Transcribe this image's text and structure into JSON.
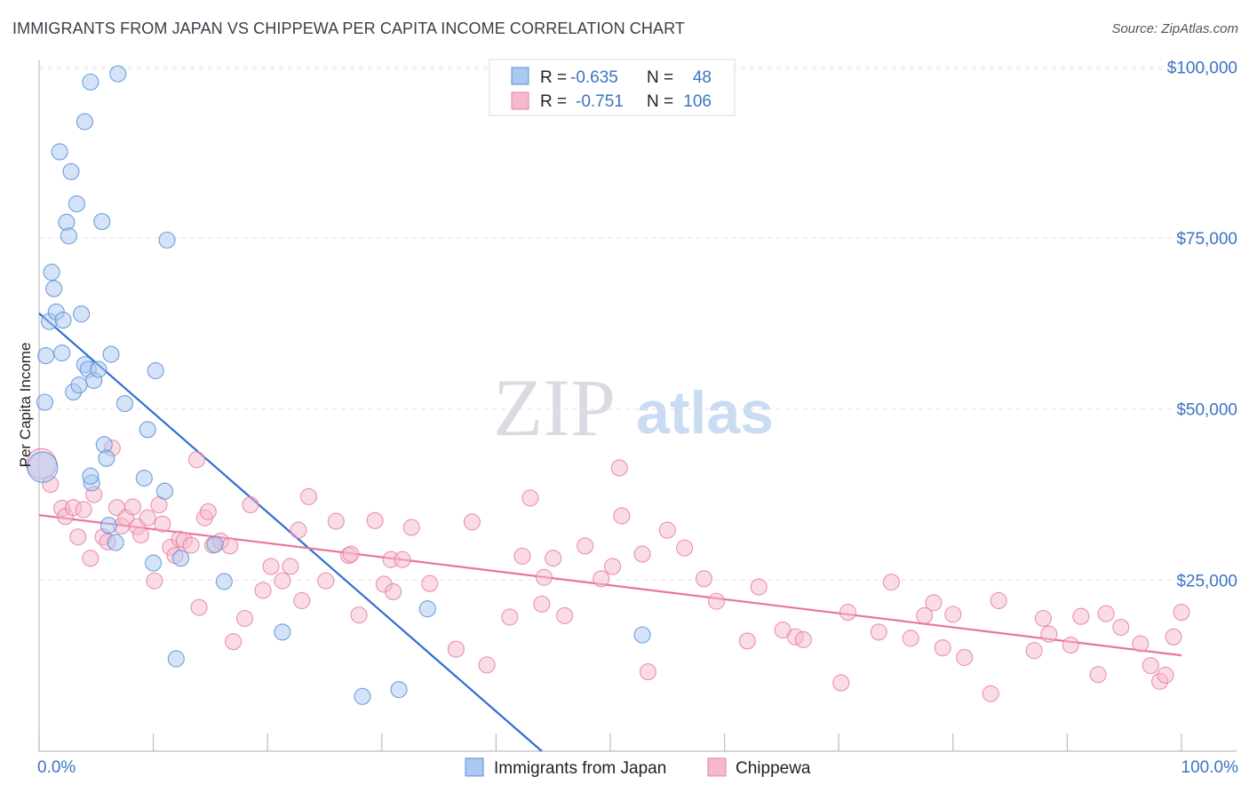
{
  "title": "IMMIGRANTS FROM JAPAN VS CHIPPEWA PER CAPITA INCOME CORRELATION CHART",
  "source": "Source: ZipAtlas.com",
  "watermark": {
    "zip": "ZIP",
    "atlas": "atlas"
  },
  "colors": {
    "blue_fill": "#a9c8f2",
    "blue_stroke": "#5b8fd6",
    "blue_line": "#2f6fd0",
    "pink_fill": "#f5b9cd",
    "pink_stroke": "#e8809f",
    "pink_line": "#e8769b",
    "tick_text": "#3d73c4",
    "grid": "#e3e3e3"
  },
  "legend": {
    "rows": [
      {
        "r_label": "R =",
        "r_value": "-0.635",
        "n_label": "N =",
        "n_value": "48"
      },
      {
        "r_label": "R =",
        "r_value": "-0.751",
        "n_label": "N =",
        "n_value": "106"
      }
    ]
  },
  "chart_data": {
    "type": "scatter",
    "title": "IMMIGRANTS FROM JAPAN VS CHIPPEWA PER CAPITA INCOME CORRELATION CHART",
    "xlabel": "",
    "ylabel": "Per Capita Income",
    "xlim": [
      0,
      100
    ],
    "ylim": [
      0,
      102000
    ],
    "x_tick_labels": [
      "0.0%",
      "100.0%"
    ],
    "y_ticks": [
      25000,
      50000,
      75000,
      100000
    ],
    "y_tick_labels": [
      "$25,000",
      "$50,000",
      "$75,000",
      "$100,000"
    ],
    "grid": true,
    "legend_position": "top-center",
    "series": [
      {
        "name": "Immigrants from Japan",
        "color": "blue",
        "regression": {
          "x0": 0,
          "y0": 64000,
          "x1": 44,
          "y1": 0
        },
        "points": [
          [
            0.3,
            41500
          ],
          [
            0.5,
            51000
          ],
          [
            0.6,
            57800
          ],
          [
            0.9,
            62800
          ],
          [
            1.1,
            70000
          ],
          [
            1.3,
            67600
          ],
          [
            1.5,
            64200
          ],
          [
            1.8,
            87600
          ],
          [
            2.0,
            58200
          ],
          [
            2.1,
            63000
          ],
          [
            2.4,
            77300
          ],
          [
            2.6,
            75300
          ],
          [
            2.8,
            84700
          ],
          [
            3.0,
            52500
          ],
          [
            3.3,
            80000
          ],
          [
            3.5,
            53500
          ],
          [
            3.7,
            63900
          ],
          [
            4.0,
            56500
          ],
          [
            4.0,
            92000
          ],
          [
            4.3,
            55800
          ],
          [
            4.5,
            97800
          ],
          [
            4.6,
            39200
          ],
          [
            4.8,
            54200
          ],
          [
            5.2,
            55800
          ],
          [
            5.5,
            77400
          ],
          [
            5.7,
            44800
          ],
          [
            5.9,
            42800
          ],
          [
            6.1,
            33000
          ],
          [
            6.3,
            58000
          ],
          [
            6.7,
            30500
          ],
          [
            6.9,
            99000
          ],
          [
            7.5,
            50800
          ],
          [
            9.2,
            39900
          ],
          [
            9.5,
            47000
          ],
          [
            10.0,
            27500
          ],
          [
            10.2,
            55600
          ],
          [
            11.0,
            38000
          ],
          [
            11.2,
            74700
          ],
          [
            12.4,
            28200
          ],
          [
            15.4,
            30200
          ],
          [
            16.2,
            24800
          ],
          [
            21.3,
            17400
          ],
          [
            12.0,
            13500
          ],
          [
            28.3,
            8000
          ],
          [
            31.5,
            9000
          ],
          [
            34.0,
            20800
          ],
          [
            52.8,
            17000
          ],
          [
            4.5,
            40200
          ]
        ]
      },
      {
        "name": "Chippewa",
        "color": "pink",
        "regression": {
          "x0": 0,
          "y0": 34500,
          "x1": 100,
          "y1": 14000
        },
        "points": [
          [
            0.2,
            42000
          ],
          [
            1.0,
            39000
          ],
          [
            2.0,
            35500
          ],
          [
            2.3,
            34300
          ],
          [
            3.0,
            35600
          ],
          [
            3.4,
            31300
          ],
          [
            3.9,
            35300
          ],
          [
            4.5,
            28200
          ],
          [
            4.8,
            37500
          ],
          [
            5.6,
            31300
          ],
          [
            6.0,
            30600
          ],
          [
            6.4,
            44300
          ],
          [
            6.8,
            35600
          ],
          [
            7.2,
            32900
          ],
          [
            7.6,
            34100
          ],
          [
            8.2,
            35700
          ],
          [
            8.6,
            32800
          ],
          [
            8.9,
            31600
          ],
          [
            9.5,
            34100
          ],
          [
            10.1,
            24900
          ],
          [
            10.5,
            36000
          ],
          [
            10.8,
            33200
          ],
          [
            11.5,
            29800
          ],
          [
            11.9,
            28600
          ],
          [
            12.3,
            31000
          ],
          [
            12.7,
            30800
          ],
          [
            13.3,
            30100
          ],
          [
            13.8,
            42600
          ],
          [
            14.0,
            21000
          ],
          [
            14.5,
            34100
          ],
          [
            14.8,
            35000
          ],
          [
            15.2,
            30100
          ],
          [
            15.9,
            30700
          ],
          [
            16.7,
            30000
          ],
          [
            17.0,
            16000
          ],
          [
            18.0,
            19400
          ],
          [
            18.5,
            36000
          ],
          [
            19.6,
            23500
          ],
          [
            20.3,
            27000
          ],
          [
            21.3,
            24900
          ],
          [
            22.0,
            27000
          ],
          [
            22.7,
            32300
          ],
          [
            23.0,
            22000
          ],
          [
            23.6,
            37200
          ],
          [
            25.1,
            24900
          ],
          [
            26.0,
            33600
          ],
          [
            27.1,
            28600
          ],
          [
            27.3,
            28800
          ],
          [
            28.0,
            19900
          ],
          [
            29.4,
            33700
          ],
          [
            30.2,
            24400
          ],
          [
            30.8,
            28000
          ],
          [
            31.0,
            23300
          ],
          [
            31.8,
            28000
          ],
          [
            32.6,
            32700
          ],
          [
            34.2,
            24500
          ],
          [
            36.5,
            14900
          ],
          [
            37.9,
            33500
          ],
          [
            39.2,
            12600
          ],
          [
            41.2,
            19600
          ],
          [
            42.3,
            28500
          ],
          [
            43.0,
            37000
          ],
          [
            44.0,
            21500
          ],
          [
            44.2,
            25400
          ],
          [
            45.0,
            28200
          ],
          [
            46.0,
            19800
          ],
          [
            47.8,
            30000
          ],
          [
            49.2,
            25200
          ],
          [
            50.2,
            27000
          ],
          [
            50.8,
            41400
          ],
          [
            51.0,
            34400
          ],
          [
            52.8,
            28800
          ],
          [
            53.3,
            11600
          ],
          [
            55.0,
            32300
          ],
          [
            56.5,
            29700
          ],
          [
            58.2,
            25200
          ],
          [
            59.3,
            21900
          ],
          [
            62.0,
            16100
          ],
          [
            63.0,
            24000
          ],
          [
            65.1,
            17700
          ],
          [
            66.2,
            16700
          ],
          [
            66.9,
            16300
          ],
          [
            70.2,
            10000
          ],
          [
            70.8,
            20300
          ],
          [
            73.5,
            17400
          ],
          [
            74.6,
            24700
          ],
          [
            76.3,
            16500
          ],
          [
            77.5,
            19800
          ],
          [
            78.3,
            21700
          ],
          [
            79.1,
            15100
          ],
          [
            80.0,
            20000
          ],
          [
            81.0,
            13700
          ],
          [
            83.3,
            8400
          ],
          [
            84.0,
            22000
          ],
          [
            87.1,
            14700
          ],
          [
            87.9,
            19400
          ],
          [
            88.4,
            17100
          ],
          [
            90.3,
            15500
          ],
          [
            91.2,
            19700
          ],
          [
            92.7,
            11200
          ],
          [
            93.4,
            20100
          ],
          [
            94.7,
            18100
          ],
          [
            96.4,
            15700
          ],
          [
            97.3,
            12500
          ],
          [
            98.1,
            10200
          ],
          [
            98.6,
            11100
          ],
          [
            99.3,
            16700
          ],
          [
            100.0,
            20300
          ]
        ]
      }
    ]
  },
  "bottom_legend": [
    {
      "label": "Immigrants from Japan"
    },
    {
      "label": "Chippewa"
    }
  ]
}
